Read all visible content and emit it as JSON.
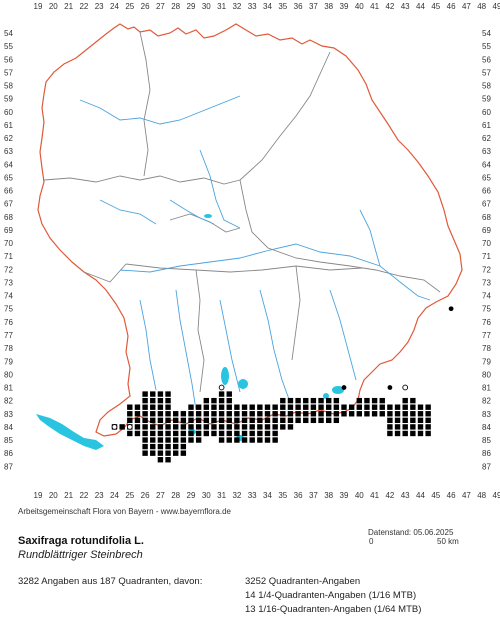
{
  "map": {
    "x_ticks": [
      "19",
      "20",
      "21",
      "22",
      "23",
      "24",
      "25",
      "26",
      "27",
      "28",
      "29",
      "30",
      "31",
      "32",
      "33",
      "34",
      "35",
      "36",
      "37",
      "38",
      "39",
      "40",
      "41",
      "42",
      "43",
      "44",
      "45",
      "46",
      "47",
      "48",
      "49"
    ],
    "y_ticks": [
      "54",
      "55",
      "56",
      "57",
      "58",
      "59",
      "60",
      "61",
      "62",
      "63",
      "64",
      "65",
      "66",
      "67",
      "68",
      "69",
      "70",
      "71",
      "72",
      "73",
      "74",
      "75",
      "76",
      "77",
      "78",
      "79",
      "80",
      "81",
      "82",
      "83",
      "84",
      "85",
      "86",
      "87"
    ],
    "colors": {
      "border": "#e05a3a",
      "region": "#888888",
      "river": "#4aa3df",
      "lake": "#29c4e0",
      "record": "#000000"
    },
    "open_markers": [
      [
        31,
        81
      ],
      [
        25,
        84
      ],
      [
        24,
        84
      ],
      [
        43,
        81
      ]
    ],
    "filled_markers": [
      [
        46,
        75
      ],
      [
        39,
        81
      ],
      [
        42,
        81
      ]
    ]
  },
  "credit": "Arbeitsgemeinschaft Flora von Bayern - www.bayernflora.de",
  "datestamp": "Datenstand: 05.06.2025",
  "scale": {
    "zero": "0",
    "end": "50 km"
  },
  "species": "Saxifraga rotundifolia L.",
  "common_name": "Rundblättriger Steinbrech",
  "summary": "3282 Angaben aus 187 Quadranten, davon:",
  "stats": [
    "3252 Quadranten-Angaben",
    "14 1/4-Quadranten-Angaben (1/16 MTB)",
    "13 1/16-Quadranten-Angaben (1/64 MTB)"
  ]
}
